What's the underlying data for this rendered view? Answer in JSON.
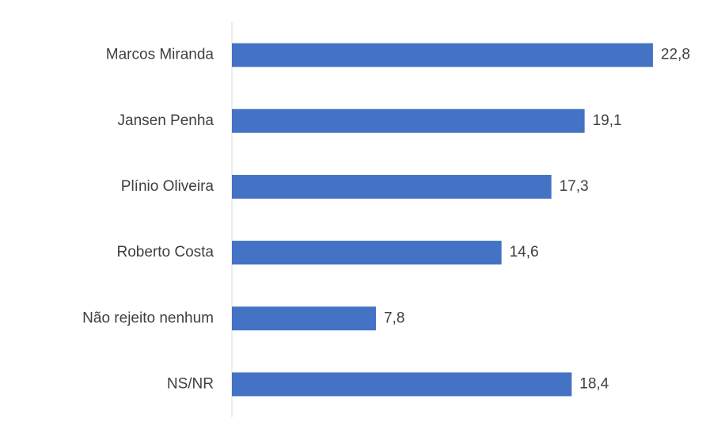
{
  "chart_data": {
    "type": "bar",
    "orientation": "horizontal",
    "categories": [
      "Marcos Miranda",
      "Jansen Penha",
      "Plínio Oliveira",
      "Roberto Costa",
      "Não rejeito nenhum",
      "NS/NR"
    ],
    "values": [
      22.8,
      19.1,
      17.3,
      14.6,
      7.8,
      18.4
    ],
    "value_labels": [
      "22,8",
      "19,1",
      "17,3",
      "14,6",
      "7,8",
      "18,4"
    ],
    "color": "#4472c4"
  }
}
